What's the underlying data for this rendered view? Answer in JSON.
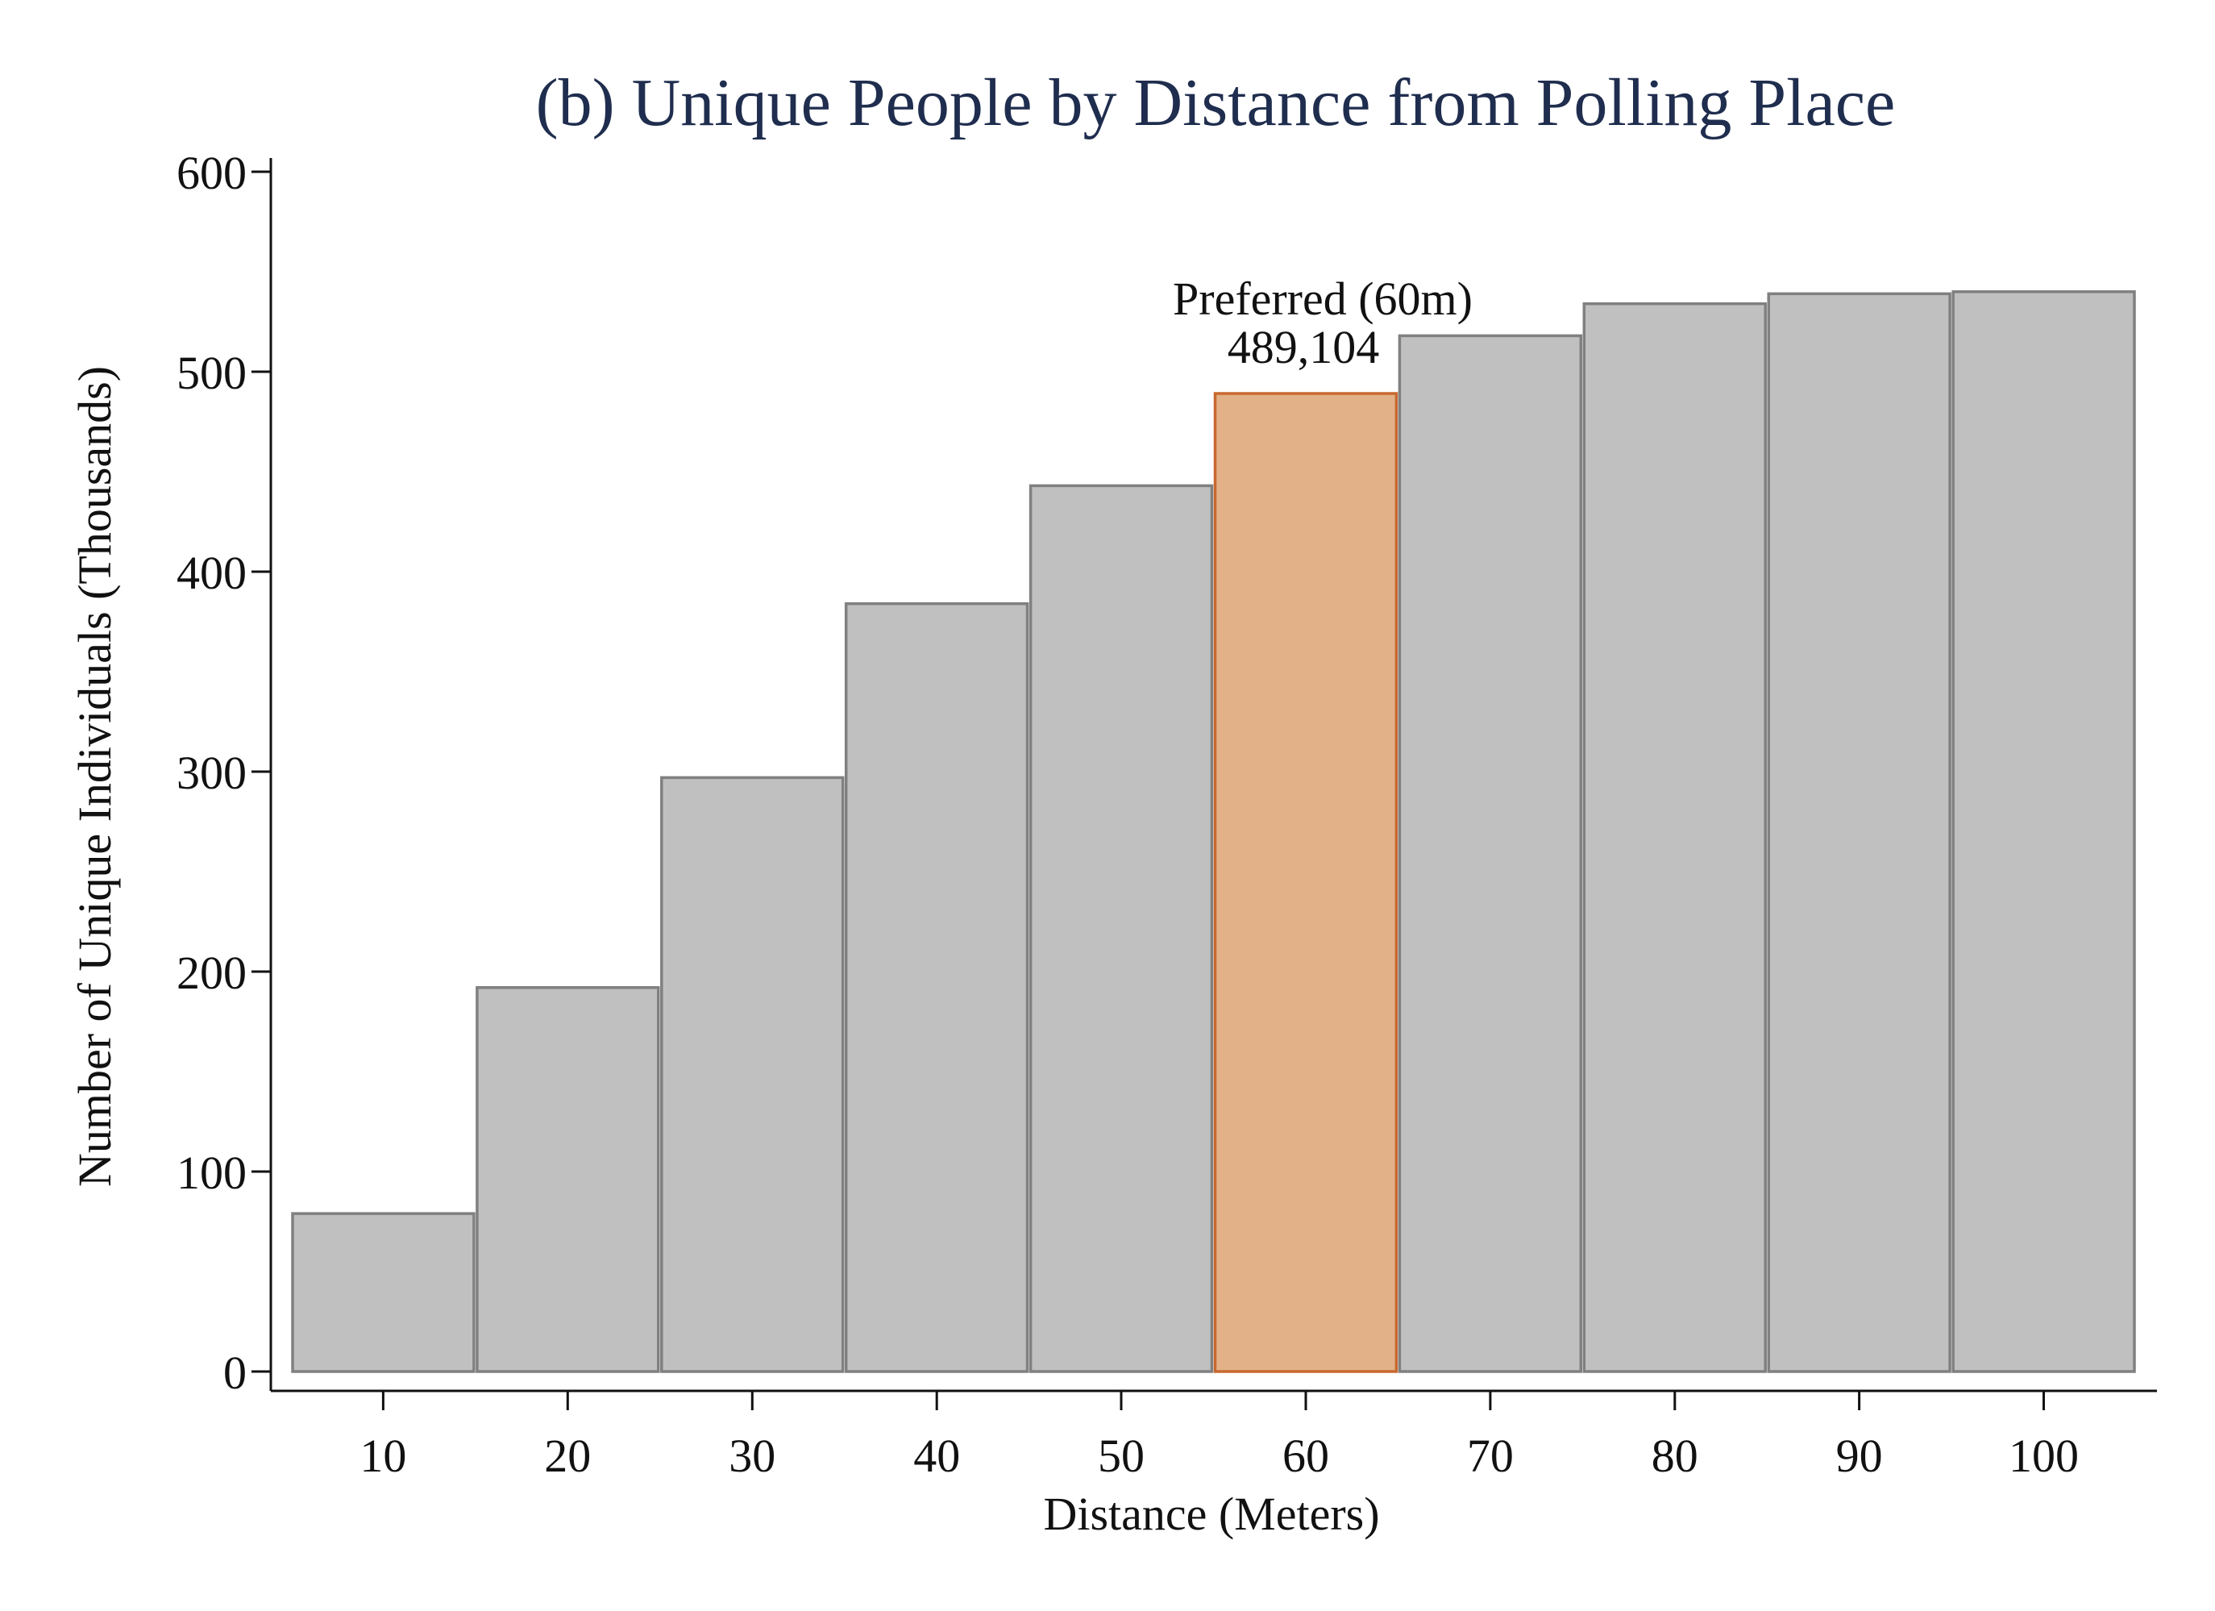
{
  "chart_data": {
    "type": "bar",
    "title": "(b) Unique People by Distance from Polling Place",
    "xlabel": "Distance (Meters)",
    "ylabel": "Number of Unique Individuals (Thousands)",
    "categories": [
      "10",
      "20",
      "30",
      "40",
      "50",
      "60",
      "70",
      "80",
      "90",
      "100"
    ],
    "x": [
      10,
      20,
      30,
      40,
      50,
      60,
      70,
      80,
      90,
      100
    ],
    "values": [
      79,
      192,
      297,
      384,
      443,
      489.104,
      518,
      534,
      539,
      540
    ],
    "ylim": [
      0,
      600
    ],
    "xlim": [
      5,
      105
    ],
    "yticks": [
      "0",
      "100",
      "200",
      "300",
      "400",
      "500",
      "600"
    ],
    "highlight": {
      "x": 60,
      "label_line1": "Preferred (60m)",
      "label_line2": "489,104"
    },
    "grid": false,
    "legend": "none",
    "colors": {
      "bar_fill": "#c0c0c0",
      "bar_stroke": "#808080",
      "highlight_fill": "#e2b188",
      "highlight_stroke": "#c8682f",
      "title": "#1f2d4e"
    }
  }
}
